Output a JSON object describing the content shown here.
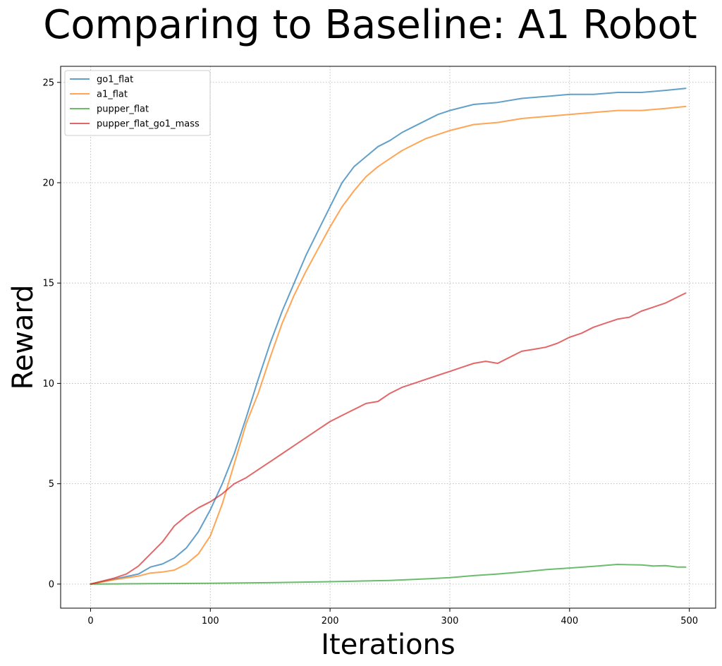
{
  "chart_data": {
    "type": "line",
    "title": "Comparing to Baseline: A1 Robot",
    "xlabel": "Iterations",
    "ylabel": "Reward",
    "xlim": [
      -25,
      522
    ],
    "ylim": [
      -1.2,
      25.8
    ],
    "xticks": [
      0,
      100,
      200,
      300,
      400,
      500
    ],
    "yticks": [
      0,
      5,
      10,
      15,
      20,
      25
    ],
    "grid": true,
    "grid_style": "dotted",
    "legend_position": "top-left",
    "series": [
      {
        "name": "go1_flat",
        "color": "#1f77b4",
        "points": [
          [
            0,
            0
          ],
          [
            20,
            0.25
          ],
          [
            40,
            0.5
          ],
          [
            50,
            0.85
          ],
          [
            60,
            1.0
          ],
          [
            70,
            1.3
          ],
          [
            80,
            1.8
          ],
          [
            90,
            2.6
          ],
          [
            100,
            3.7
          ],
          [
            110,
            5.0
          ],
          [
            120,
            6.5
          ],
          [
            130,
            8.3
          ],
          [
            140,
            10.2
          ],
          [
            150,
            12.0
          ],
          [
            160,
            13.6
          ],
          [
            170,
            15.0
          ],
          [
            180,
            16.4
          ],
          [
            190,
            17.6
          ],
          [
            200,
            18.8
          ],
          [
            210,
            20.0
          ],
          [
            220,
            20.8
          ],
          [
            230,
            21.3
          ],
          [
            240,
            21.8
          ],
          [
            250,
            22.1
          ],
          [
            260,
            22.5
          ],
          [
            270,
            22.8
          ],
          [
            280,
            23.1
          ],
          [
            290,
            23.4
          ],
          [
            300,
            23.6
          ],
          [
            320,
            23.9
          ],
          [
            340,
            24.0
          ],
          [
            360,
            24.2
          ],
          [
            380,
            24.3
          ],
          [
            400,
            24.4
          ],
          [
            420,
            24.4
          ],
          [
            440,
            24.5
          ],
          [
            460,
            24.5
          ],
          [
            480,
            24.6
          ],
          [
            497,
            24.7
          ]
        ]
      },
      {
        "name": "a1_flat",
        "color": "#ff7f0e",
        "points": [
          [
            0,
            0
          ],
          [
            20,
            0.22
          ],
          [
            40,
            0.4
          ],
          [
            50,
            0.55
          ],
          [
            60,
            0.6
          ],
          [
            70,
            0.7
          ],
          [
            80,
            1.0
          ],
          [
            90,
            1.5
          ],
          [
            100,
            2.4
          ],
          [
            110,
            4.0
          ],
          [
            120,
            6.0
          ],
          [
            130,
            8.0
          ],
          [
            140,
            9.5
          ],
          [
            150,
            11.3
          ],
          [
            160,
            13.0
          ],
          [
            170,
            14.4
          ],
          [
            180,
            15.6
          ],
          [
            190,
            16.7
          ],
          [
            200,
            17.8
          ],
          [
            210,
            18.8
          ],
          [
            220,
            19.6
          ],
          [
            230,
            20.3
          ],
          [
            240,
            20.8
          ],
          [
            250,
            21.2
          ],
          [
            260,
            21.6
          ],
          [
            270,
            21.9
          ],
          [
            280,
            22.2
          ],
          [
            290,
            22.4
          ],
          [
            300,
            22.6
          ],
          [
            320,
            22.9
          ],
          [
            340,
            23.0
          ],
          [
            360,
            23.2
          ],
          [
            380,
            23.3
          ],
          [
            400,
            23.4
          ],
          [
            420,
            23.5
          ],
          [
            440,
            23.6
          ],
          [
            460,
            23.6
          ],
          [
            480,
            23.7
          ],
          [
            497,
            23.8
          ]
        ]
      },
      {
        "name": "pupper_flat",
        "color": "#2ca02c",
        "points": [
          [
            0,
            0
          ],
          [
            50,
            0.02
          ],
          [
            100,
            0.04
          ],
          [
            150,
            0.07
          ],
          [
            200,
            0.12
          ],
          [
            250,
            0.18
          ],
          [
            280,
            0.26
          ],
          [
            300,
            0.32
          ],
          [
            320,
            0.42
          ],
          [
            340,
            0.5
          ],
          [
            360,
            0.6
          ],
          [
            380,
            0.72
          ],
          [
            400,
            0.8
          ],
          [
            420,
            0.88
          ],
          [
            440,
            0.98
          ],
          [
            460,
            0.95
          ],
          [
            470,
            0.9
          ],
          [
            480,
            0.92
          ],
          [
            490,
            0.85
          ],
          [
            497,
            0.85
          ]
        ]
      },
      {
        "name": "pupper_flat_go1_mass",
        "color": "#d62728",
        "points": [
          [
            0,
            0
          ],
          [
            20,
            0.3
          ],
          [
            30,
            0.5
          ],
          [
            40,
            0.9
          ],
          [
            50,
            1.5
          ],
          [
            60,
            2.1
          ],
          [
            70,
            2.9
          ],
          [
            80,
            3.4
          ],
          [
            90,
            3.8
          ],
          [
            100,
            4.1
          ],
          [
            110,
            4.5
          ],
          [
            120,
            5.0
          ],
          [
            130,
            5.3
          ],
          [
            140,
            5.7
          ],
          [
            150,
            6.1
          ],
          [
            160,
            6.5
          ],
          [
            170,
            6.9
          ],
          [
            180,
            7.3
          ],
          [
            190,
            7.7
          ],
          [
            200,
            8.1
          ],
          [
            210,
            8.4
          ],
          [
            220,
            8.7
          ],
          [
            230,
            9.0
          ],
          [
            240,
            9.1
          ],
          [
            250,
            9.5
          ],
          [
            260,
            9.8
          ],
          [
            270,
            10.0
          ],
          [
            280,
            10.2
          ],
          [
            290,
            10.4
          ],
          [
            300,
            10.6
          ],
          [
            310,
            10.8
          ],
          [
            320,
            11.0
          ],
          [
            330,
            11.1
          ],
          [
            340,
            11.0
          ],
          [
            350,
            11.3
          ],
          [
            360,
            11.6
          ],
          [
            370,
            11.7
          ],
          [
            380,
            11.8
          ],
          [
            390,
            12.0
          ],
          [
            400,
            12.3
          ],
          [
            410,
            12.5
          ],
          [
            420,
            12.8
          ],
          [
            430,
            13.0
          ],
          [
            440,
            13.2
          ],
          [
            450,
            13.3
          ],
          [
            460,
            13.6
          ],
          [
            470,
            13.8
          ],
          [
            480,
            14.0
          ],
          [
            490,
            14.3
          ],
          [
            497,
            14.5
          ]
        ]
      }
    ]
  }
}
